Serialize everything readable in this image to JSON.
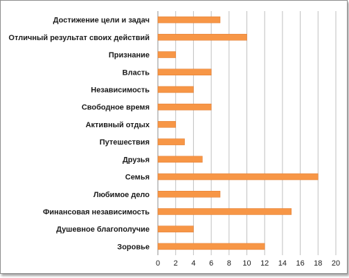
{
  "chart_data": {
    "type": "bar",
    "orientation": "horizontal",
    "categories": [
      "Достижение цели и задач",
      "Отличный результат своих действий",
      "Признание",
      "Власть",
      "Независимость",
      "Свободное время",
      "Активный отдых",
      "Путешествия",
      "Друзья",
      "Семья",
      "Любимое дело",
      "Финансовая независимость",
      "Душевное благополучие",
      "Зоровье"
    ],
    "values": [
      7,
      10,
      2,
      6,
      4,
      6,
      2,
      3,
      5,
      18,
      7,
      15,
      4,
      12
    ],
    "xticks": [
      "0",
      "2",
      "4",
      "6",
      "8",
      "10",
      "12",
      "14",
      "16",
      "18",
      "20"
    ],
    "xlim": [
      0,
      20
    ],
    "grid": true,
    "legend": "none",
    "bar_color": "#F79646",
    "bar_edge_color": "#E07A2E",
    "grid_color": "#BFBFBF"
  }
}
